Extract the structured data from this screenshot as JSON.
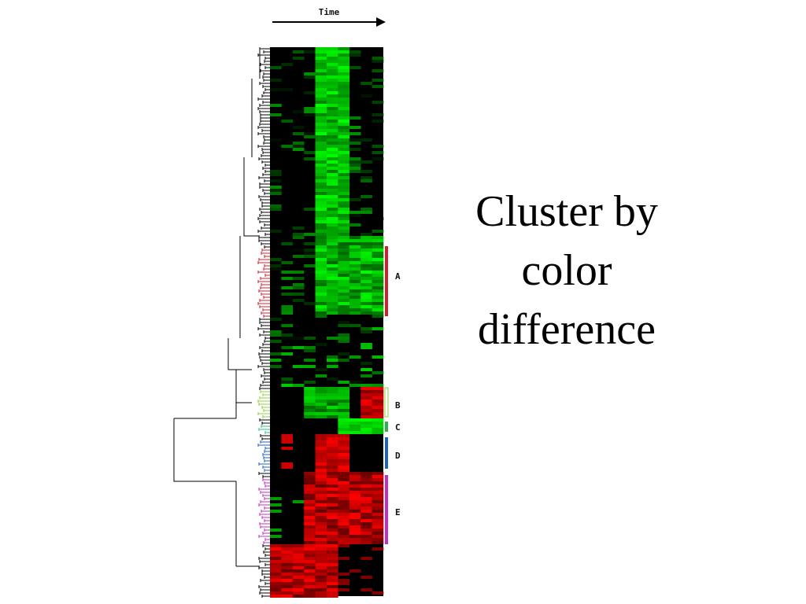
{
  "header": {
    "arrow_label": "Time"
  },
  "clusters": [
    {
      "label": "A"
    },
    {
      "label": "B"
    },
    {
      "label": "C"
    },
    {
      "label": "D"
    },
    {
      "label": "E"
    }
  ],
  "title": {
    "lines": [
      "Cluster by",
      "color",
      "difference"
    ]
  }
}
